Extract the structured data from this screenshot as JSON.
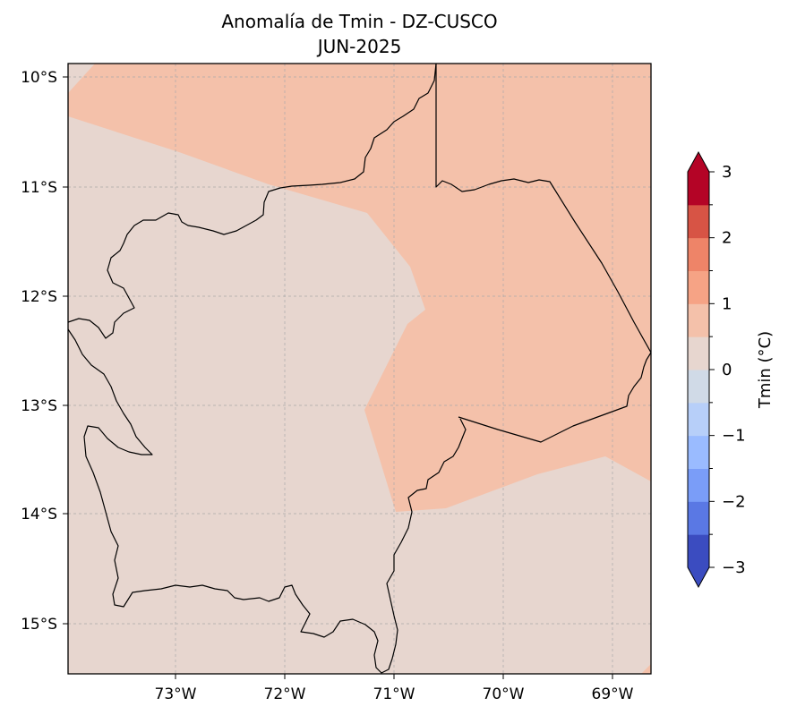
{
  "map": {
    "title_line1": "Anomalía de Tmin - DZ-CUSCO",
    "title_line2": "JUN-2025",
    "lat_labels": [
      "10°S",
      "11°S",
      "12°S",
      "13°S",
      "14°S",
      "15°S"
    ],
    "lon_labels": [
      "73°W",
      "72°W",
      "71°W",
      "70°W",
      "69°W"
    ],
    "gridlines": true,
    "fill_colors": {
      "near_zero": "#e7d6cf",
      "warm_0_5_to_1": "#f4c1aa"
    }
  },
  "colorbar": {
    "label": "Tmin (°C)",
    "tick_labels": [
      "3",
      "2",
      "1",
      "0",
      "−1",
      "−2",
      "−3"
    ],
    "min": -3,
    "max": 3,
    "step": 0.5,
    "extend": "both",
    "colors": [
      "#3b4cc0",
      "#5a78e4",
      "#7a9df8",
      "#9abbff",
      "#b7cff9",
      "#d0dae7",
      "#e7d6cf",
      "#f4c1aa",
      "#f6a385",
      "#ee8468",
      "#d75445",
      "#b40426"
    ]
  }
}
